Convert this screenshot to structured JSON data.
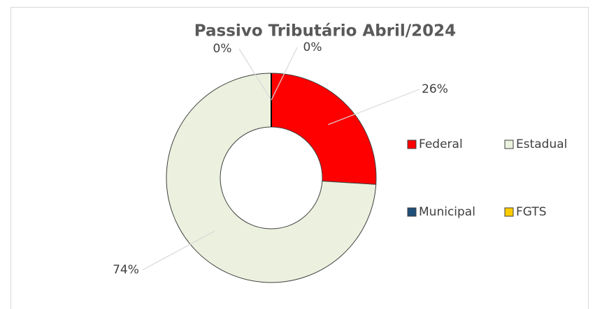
{
  "chart_data": {
    "type": "doughnut",
    "title": "Passivo Tributário Abril/2024",
    "categories": [
      "Federal",
      "Estadual",
      "Municipal",
      "FGTS"
    ],
    "values": [
      26,
      74,
      0,
      0
    ],
    "value_labels": [
      "26%",
      "74%",
      "0%",
      "0%"
    ],
    "colors": [
      "#ff0000",
      "#ebf1de",
      "#1f4e79",
      "#ffcc00"
    ],
    "legend": "right"
  }
}
